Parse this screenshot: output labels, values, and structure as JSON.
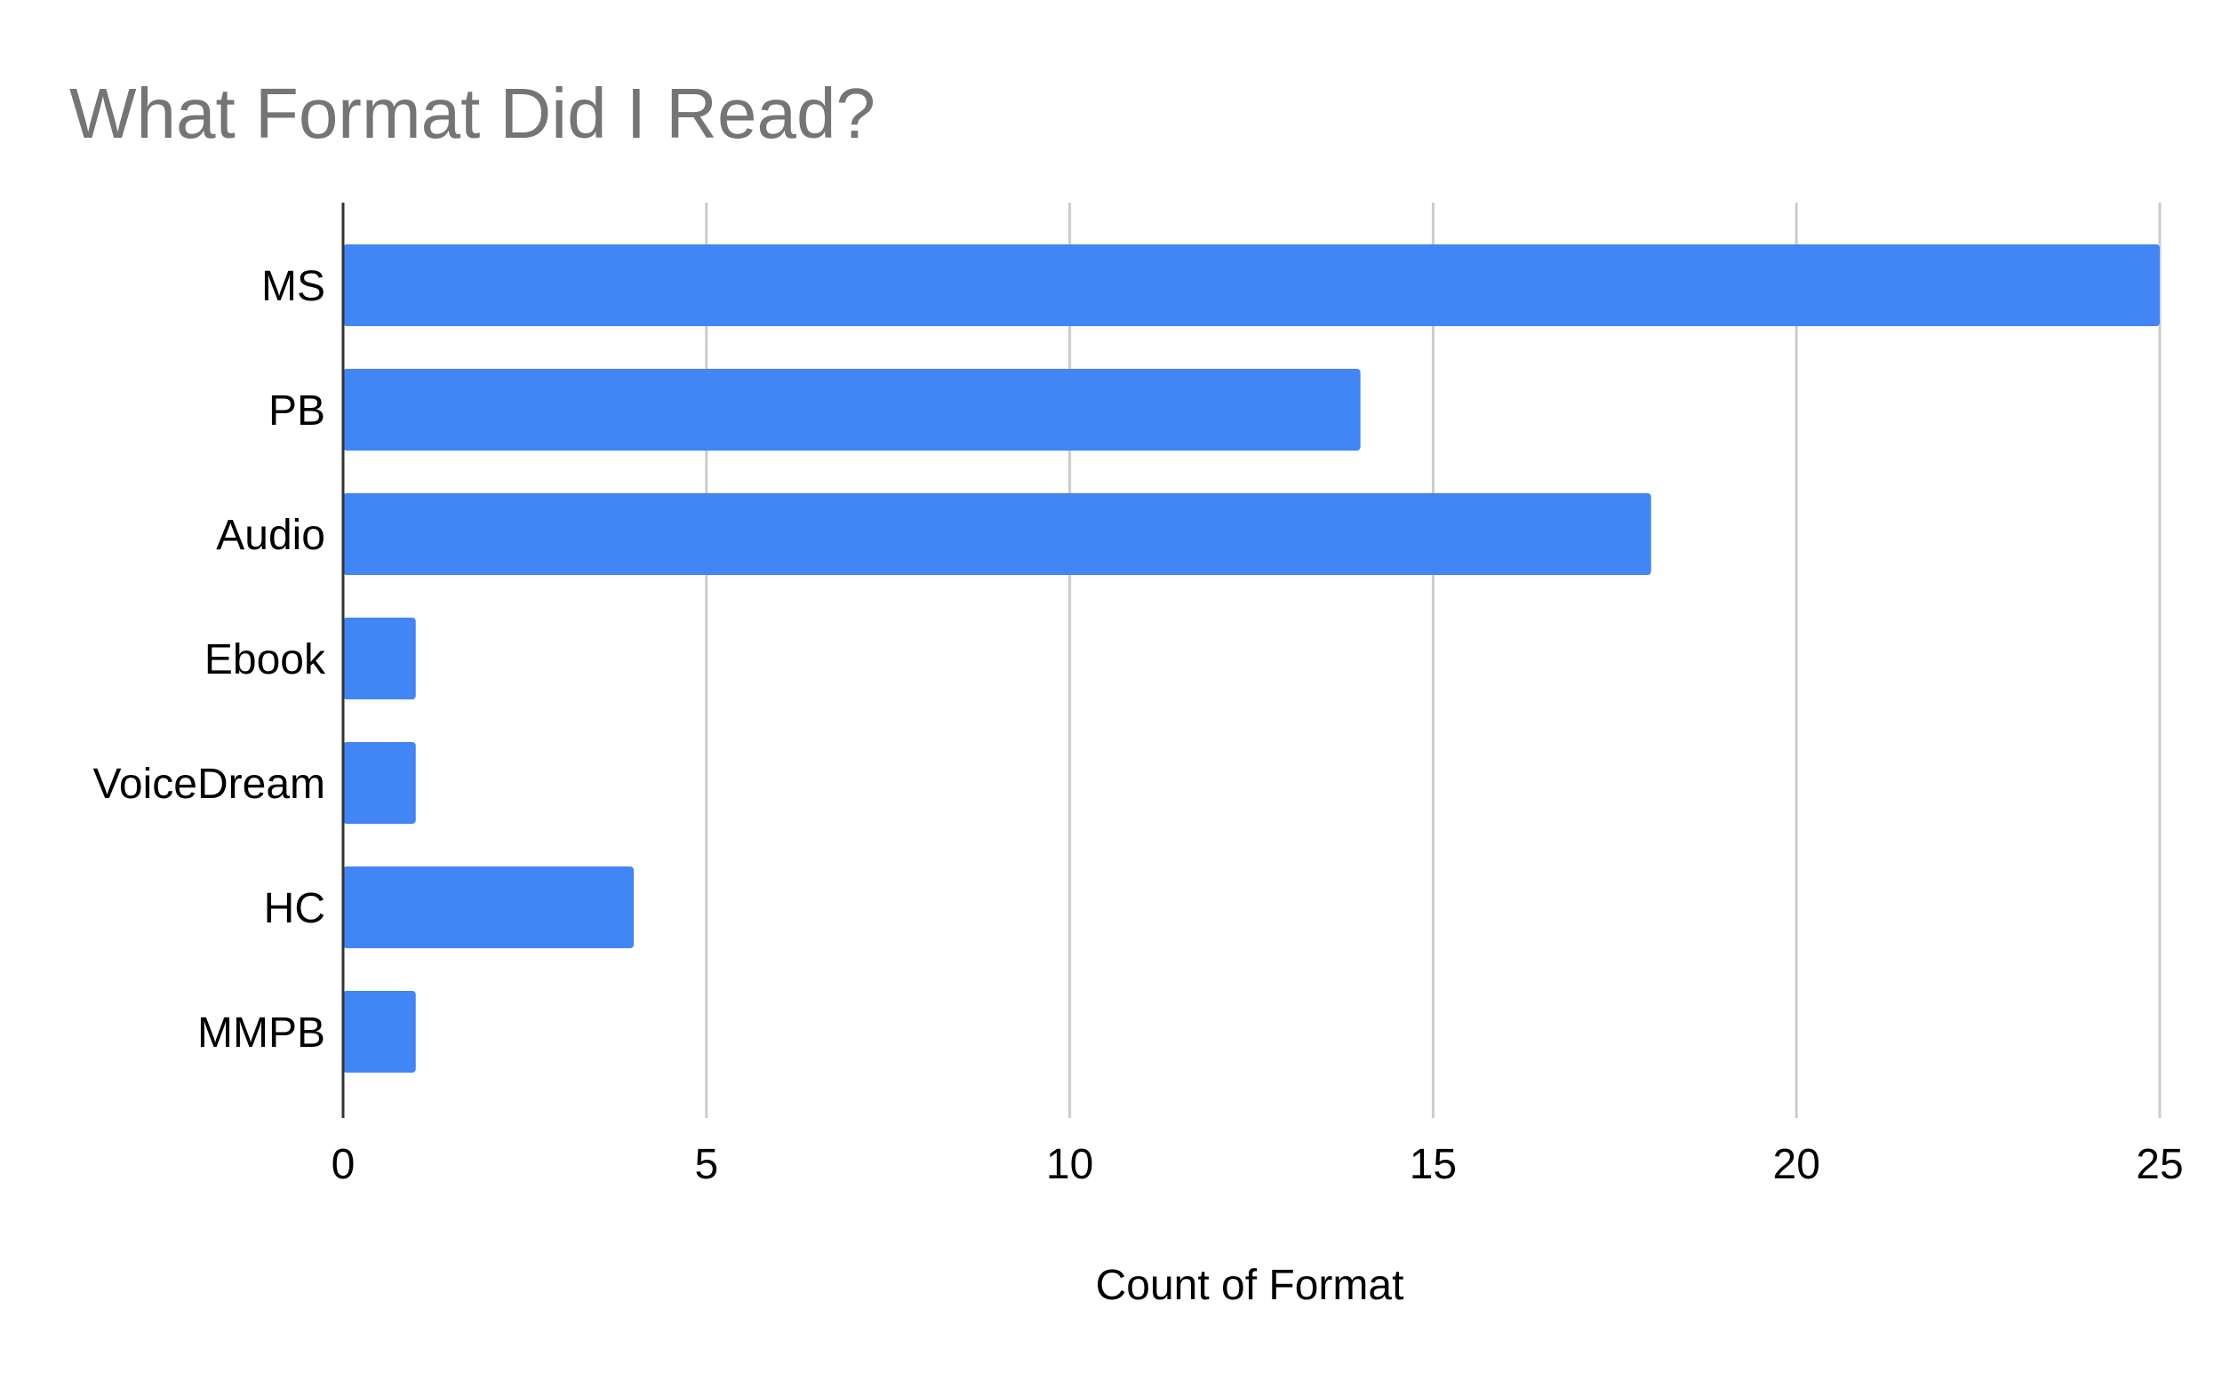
{
  "chart_data": {
    "type": "bar",
    "orientation": "horizontal",
    "title": "What Format Did I Read?",
    "xlabel": "Count of Format",
    "ylabel": "",
    "categories": [
      "MS",
      "PB",
      "Audio",
      "Ebook",
      "VoiceDream",
      "HC",
      "MMPB"
    ],
    "values": [
      25,
      14,
      18,
      1,
      1,
      4,
      1
    ],
    "xlim": [
      0,
      25
    ],
    "xticks": [
      0,
      5,
      10,
      15,
      20,
      25
    ],
    "grid": true,
    "legend": "none",
    "bar_color": "#4285F4",
    "gridline_color": "#cccccc",
    "axis_color": "#333333"
  }
}
